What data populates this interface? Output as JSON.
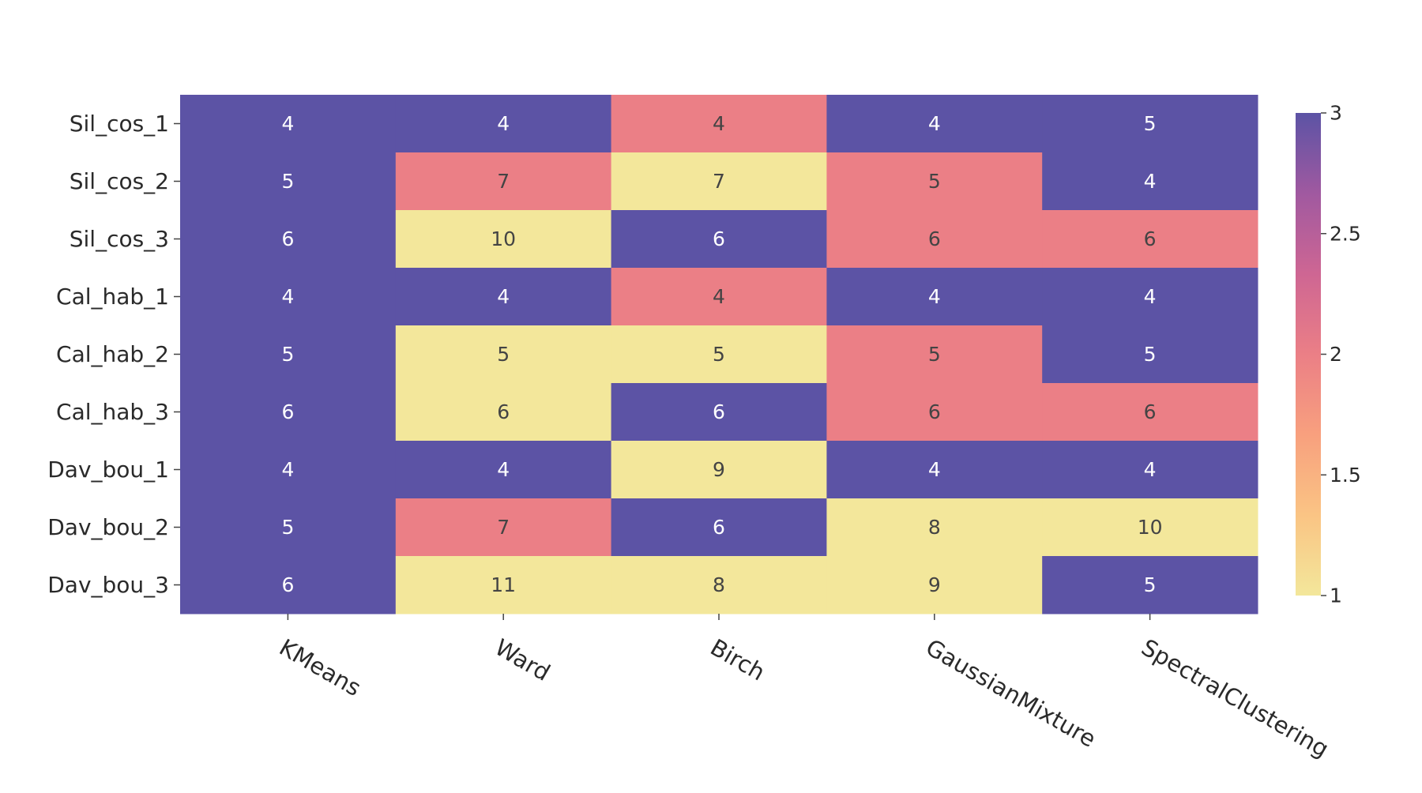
{
  "chart_data": {
    "type": "heatmap",
    "title": "",
    "xlabel": "",
    "ylabel": "",
    "x_categories": [
      "KMeans",
      "Ward",
      "Birch",
      "GaussianMixture",
      "SpectralClustering"
    ],
    "y_categories": [
      "Sil_cos_1",
      "Sil_cos_2",
      "Sil_cos_3",
      "Cal_hab_1",
      "Cal_hab_2",
      "Cal_hab_3",
      "Dav_bou_1",
      "Dav_bou_2",
      "Dav_bou_3"
    ],
    "z": [
      [
        3,
        3,
        2,
        3,
        3
      ],
      [
        3,
        2,
        1,
        2,
        3
      ],
      [
        3,
        1,
        3,
        2,
        2
      ],
      [
        3,
        3,
        2,
        3,
        3
      ],
      [
        3,
        1,
        1,
        2,
        3
      ],
      [
        3,
        1,
        3,
        2,
        2
      ],
      [
        3,
        3,
        1,
        3,
        3
      ],
      [
        3,
        2,
        3,
        1,
        1
      ],
      [
        3,
        1,
        1,
        1,
        3
      ]
    ],
    "text": [
      [
        "4",
        "4",
        "4",
        "4",
        "5"
      ],
      [
        "5",
        "7",
        "7",
        "5",
        "4"
      ],
      [
        "6",
        "10",
        "6",
        "6",
        "6"
      ],
      [
        "4",
        "4",
        "4",
        "4",
        "4"
      ],
      [
        "5",
        "5",
        "5",
        "5",
        "5"
      ],
      [
        "6",
        "6",
        "6",
        "6",
        "6"
      ],
      [
        "4",
        "4",
        "9",
        "4",
        "4"
      ],
      [
        "5",
        "7",
        "6",
        "8",
        "10"
      ],
      [
        "6",
        "11",
        "8",
        "9",
        "5"
      ]
    ],
    "zrange": [
      1,
      3
    ],
    "colorscale": [
      "#f3e79b",
      "#fac484",
      "#f8a07e",
      "#eb7f86",
      "#ce6693",
      "#a059a0",
      "#5c53a5"
    ],
    "colorbar": {
      "tick_values": [
        1,
        1.5,
        2,
        2.5,
        3
      ],
      "tick_labels": [
        "1",
        "1.5",
        "2",
        "2.5",
        "3"
      ]
    },
    "grid": false,
    "text_color_dark": "#444444",
    "text_color_light": "#ffffff"
  }
}
